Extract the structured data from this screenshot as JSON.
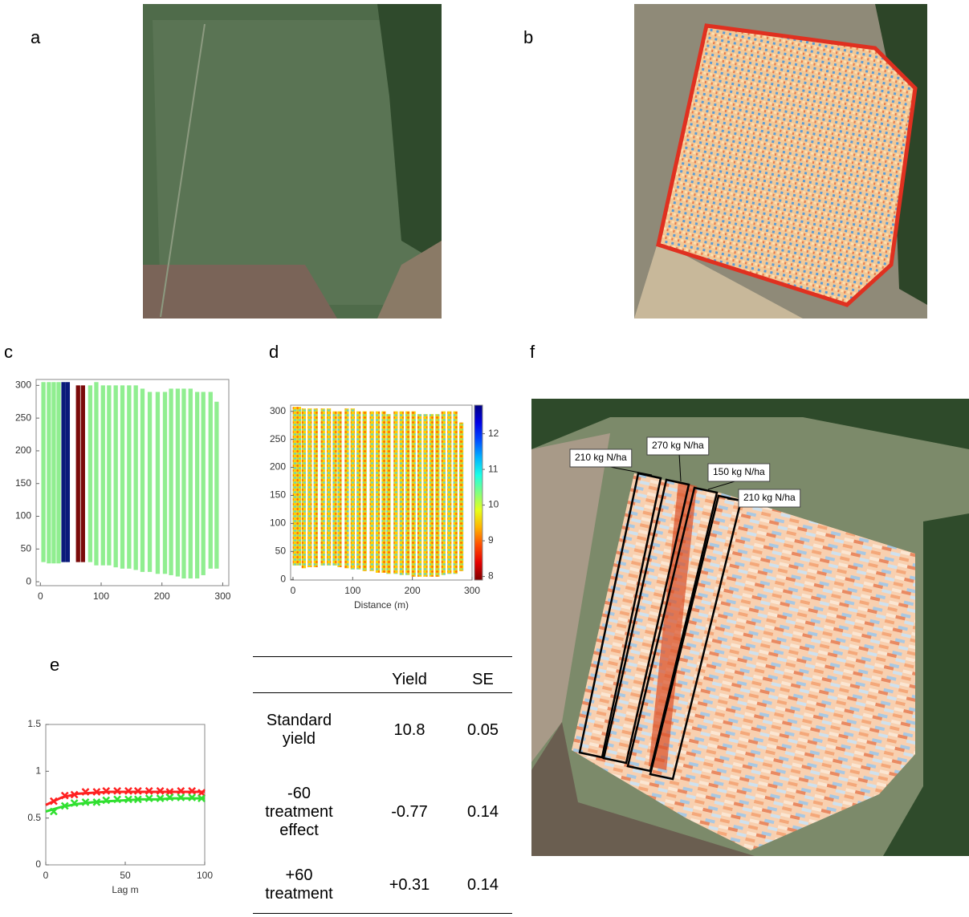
{
  "panel_labels": [
    "a",
    "b",
    "c",
    "d",
    "e",
    "f"
  ],
  "chart_data": [
    {
      "type": "strip",
      "xlim": [
        -7,
        310
      ],
      "ylim": [
        -6,
        309
      ],
      "xticks": [
        0,
        100,
        200,
        300
      ],
      "yticks": [
        0,
        50,
        100,
        150,
        200,
        250,
        300
      ],
      "series": [
        {
          "color": "#90ee90",
          "x": [
            5,
            14,
            22,
            30,
            82,
            92,
            103,
            113,
            124,
            135,
            146,
            157,
            168,
            180,
            193,
            205,
            215,
            226,
            236,
            247,
            258,
            268,
            280,
            290
          ],
          "ymin": [
            30,
            28,
            28,
            28,
            30,
            25,
            25,
            25,
            22,
            20,
            20,
            18,
            15,
            15,
            12,
            12,
            10,
            8,
            5,
            5,
            5,
            10,
            20,
            20
          ],
          "ymax": [
            305,
            305,
            305,
            305,
            300,
            305,
            300,
            300,
            300,
            300,
            300,
            300,
            295,
            290,
            290,
            290,
            295,
            295,
            295,
            295,
            290,
            290,
            290,
            275
          ]
        },
        {
          "color": "#0a1a7a",
          "x": [
            38,
            45
          ],
          "ymin": [
            30,
            30
          ],
          "ymax": [
            305,
            305
          ]
        },
        {
          "color": "#7a0a0a",
          "x": [
            62,
            70
          ],
          "ymin": [
            30,
            30
          ],
          "ymax": [
            300,
            300
          ]
        }
      ]
    },
    {
      "type": "strip",
      "xlabel": "Distance (m)",
      "xlim": [
        -4,
        300
      ],
      "ylim": [
        -1,
        311
      ],
      "xticks": [
        0,
        100,
        200,
        300
      ],
      "yticks": [
        0,
        50,
        100,
        150,
        200,
        250,
        300
      ],
      "colorbar": {
        "clim": [
          7.9,
          12.8
        ],
        "ticks": [
          8,
          9,
          10,
          11,
          12
        ]
      },
      "series": [
        {
          "x": [
            3,
            10,
            18,
            28,
            38,
            50,
            60,
            70,
            78,
            90,
            100,
            110,
            120,
            132,
            142,
            152,
            160,
            172,
            182,
            192,
            202,
            212,
            222,
            232,
            242,
            252,
            262,
            272,
            282
          ],
          "ymin": [
            25,
            25,
            20,
            22,
            22,
            25,
            25,
            25,
            22,
            20,
            18,
            18,
            15,
            15,
            12,
            12,
            10,
            10,
            8,
            8,
            5,
            5,
            5,
            5,
            5,
            8,
            10,
            10,
            15
          ],
          "ymax": [
            308,
            308,
            305,
            305,
            305,
            305,
            305,
            300,
            300,
            305,
            305,
            300,
            300,
            300,
            300,
            300,
            295,
            300,
            300,
            300,
            300,
            295,
            295,
            295,
            295,
            300,
            300,
            300,
            280
          ]
        }
      ]
    },
    {
      "type": "line",
      "xlabel": "Lag m",
      "xlim": [
        0,
        100
      ],
      "ylim": [
        0,
        1.5
      ],
      "xticks": [
        0,
        50,
        100
      ],
      "yticks": [
        0,
        0.5,
        1,
        1.5
      ],
      "series": [
        {
          "color": "#ff2020",
          "marker": "x",
          "x": [
            5,
            12,
            18,
            25,
            32,
            38,
            45,
            52,
            58,
            65,
            72,
            78,
            85,
            92,
            98
          ],
          "values": [
            0.68,
            0.74,
            0.75,
            0.78,
            0.78,
            0.79,
            0.79,
            0.79,
            0.79,
            0.79,
            0.79,
            0.78,
            0.79,
            0.79,
            0.77
          ]
        },
        {
          "color": "#30e030",
          "marker": "x",
          "x": [
            5,
            12,
            18,
            25,
            32,
            38,
            45,
            52,
            58,
            65,
            72,
            78,
            85,
            92,
            98
          ],
          "values": [
            0.57,
            0.63,
            0.66,
            0.67,
            0.67,
            0.69,
            0.7,
            0.7,
            0.7,
            0.71,
            0.71,
            0.72,
            0.72,
            0.72,
            0.71
          ]
        },
        {
          "color": "#ff2020",
          "x": [
            0,
            10,
            20,
            30,
            40,
            50,
            60,
            70,
            80,
            90,
            100
          ],
          "values": [
            0.64,
            0.72,
            0.76,
            0.77,
            0.78,
            0.78,
            0.78,
            0.78,
            0.78,
            0.78,
            0.78
          ]
        },
        {
          "color": "#30e030",
          "x": [
            0,
            10,
            20,
            30,
            40,
            50,
            60,
            70,
            80,
            90,
            100
          ],
          "values": [
            0.57,
            0.62,
            0.65,
            0.67,
            0.68,
            0.69,
            0.7,
            0.7,
            0.71,
            0.71,
            0.71
          ]
        }
      ]
    }
  ],
  "table": {
    "header": [
      "Yield",
      "SE"
    ],
    "rows": [
      [
        "Standard yield",
        "10.8",
        "0.05"
      ],
      [
        "-60 treatment effect",
        "-0.77",
        "0.14"
      ],
      [
        "+60 treatment",
        "+0.31",
        "0.14"
      ]
    ]
  },
  "annotations": [
    "210 kg N/ha",
    "270 kg N/ha",
    "150 kg N/ha",
    "210 kg N/ha"
  ]
}
